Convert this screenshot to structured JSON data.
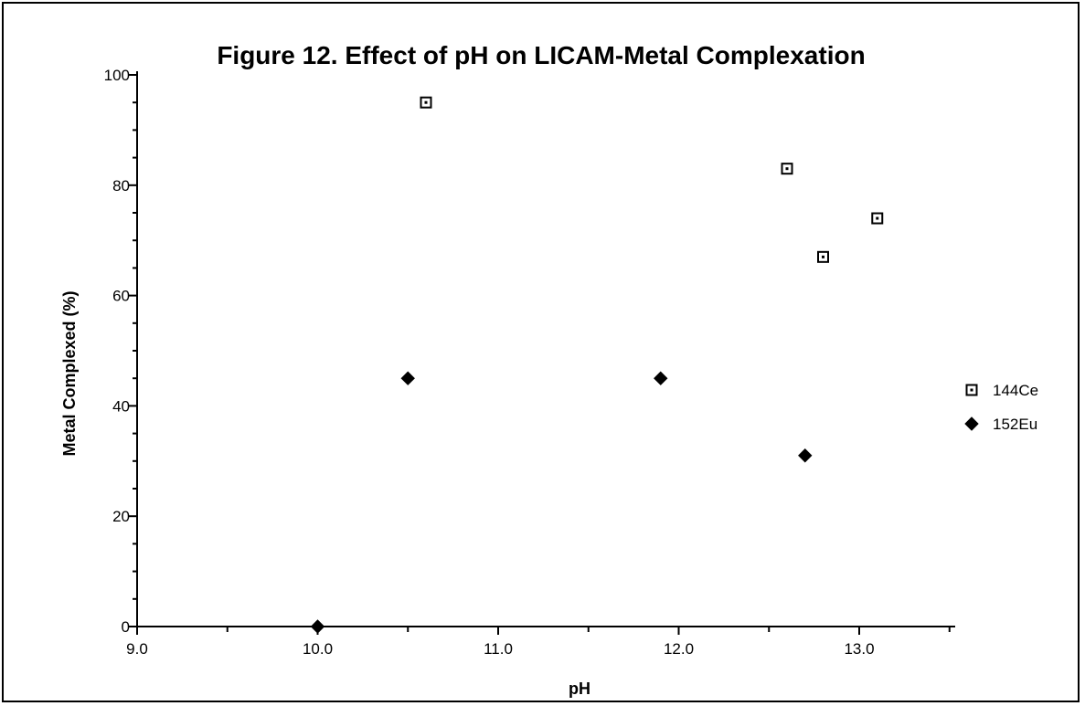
{
  "chart_data": {
    "type": "scatter",
    "title": "Figure 12.   Effect of pH on LICAM-Metal Complexation",
    "xlabel": "pH",
    "ylabel": "Metal Complexed  (%)",
    "xlim": [
      9.0,
      13.6
    ],
    "ylim": [
      0,
      100
    ],
    "x_ticks": [
      9.0,
      10.0,
      11.0,
      12.0,
      13.0
    ],
    "x_tick_labels": [
      "9.0",
      "10.0",
      "11.0",
      "12.0",
      "13.0"
    ],
    "y_ticks": [
      0,
      20,
      40,
      60,
      80,
      100
    ],
    "y_tick_labels": [
      "0",
      "20",
      "40",
      "60",
      "80",
      "100"
    ],
    "grid": false,
    "legend_position": "right",
    "series": [
      {
        "name": "144Ce",
        "marker": "open-square",
        "color": "#000000",
        "points": [
          [
            10.6,
            95
          ],
          [
            12.6,
            83
          ],
          [
            12.8,
            67
          ],
          [
            13.1,
            74
          ]
        ]
      },
      {
        "name": "152Eu",
        "marker": "filled-diamond",
        "color": "#000000",
        "points": [
          [
            10.0,
            0
          ],
          [
            10.5,
            45
          ],
          [
            11.9,
            45
          ],
          [
            12.7,
            31
          ]
        ]
      }
    ]
  }
}
